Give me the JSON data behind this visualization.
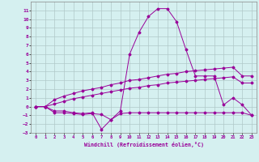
{
  "xlabel": "Windchill (Refroidissement éolien,°C)",
  "x": [
    0,
    1,
    2,
    3,
    4,
    5,
    6,
    7,
    8,
    9,
    10,
    11,
    12,
    13,
    14,
    15,
    16,
    17,
    18,
    19,
    20,
    21,
    22,
    23
  ],
  "line1": [
    0,
    0,
    -0.7,
    -0.7,
    -0.8,
    -0.9,
    -0.8,
    -0.9,
    -1.5,
    -0.8,
    -0.7,
    -0.7,
    -0.7,
    -0.7,
    -0.7,
    -0.7,
    -0.7,
    -0.7,
    -0.7,
    -0.7,
    -0.7,
    -0.7,
    -0.7,
    -1.0
  ],
  "line2": [
    0,
    0,
    -0.5,
    -0.5,
    -0.7,
    -0.8,
    -0.7,
    -2.6,
    -1.5,
    -0.5,
    6.0,
    8.5,
    10.3,
    11.2,
    11.2,
    9.7,
    6.5,
    3.5,
    3.5,
    3.5,
    0.2,
    1.0,
    0.2,
    -1.0
  ],
  "line3": [
    0,
    0,
    0.8,
    1.2,
    1.5,
    1.8,
    2.0,
    2.2,
    2.5,
    2.7,
    3.0,
    3.1,
    3.3,
    3.5,
    3.7,
    3.8,
    4.0,
    4.1,
    4.2,
    4.3,
    4.4,
    4.5,
    3.5,
    3.5
  ],
  "line4": [
    0,
    0,
    0.3,
    0.6,
    0.9,
    1.1,
    1.3,
    1.5,
    1.7,
    1.9,
    2.1,
    2.2,
    2.4,
    2.5,
    2.7,
    2.8,
    2.9,
    3.0,
    3.1,
    3.2,
    3.3,
    3.4,
    2.7,
    2.7
  ],
  "bg_color": "#d5f0f0",
  "line_color": "#990099",
  "grid_color": "#b0c8c8",
  "ylim": [
    -3,
    12
  ],
  "xlim": [
    -0.5,
    23.5
  ],
  "yticks": [
    -3,
    -2,
    -1,
    0,
    1,
    2,
    3,
    4,
    5,
    6,
    7,
    8,
    9,
    10,
    11
  ],
  "xticks": [
    0,
    1,
    2,
    3,
    4,
    5,
    6,
    7,
    8,
    9,
    10,
    11,
    12,
    13,
    14,
    15,
    16,
    17,
    18,
    19,
    20,
    21,
    22,
    23
  ]
}
